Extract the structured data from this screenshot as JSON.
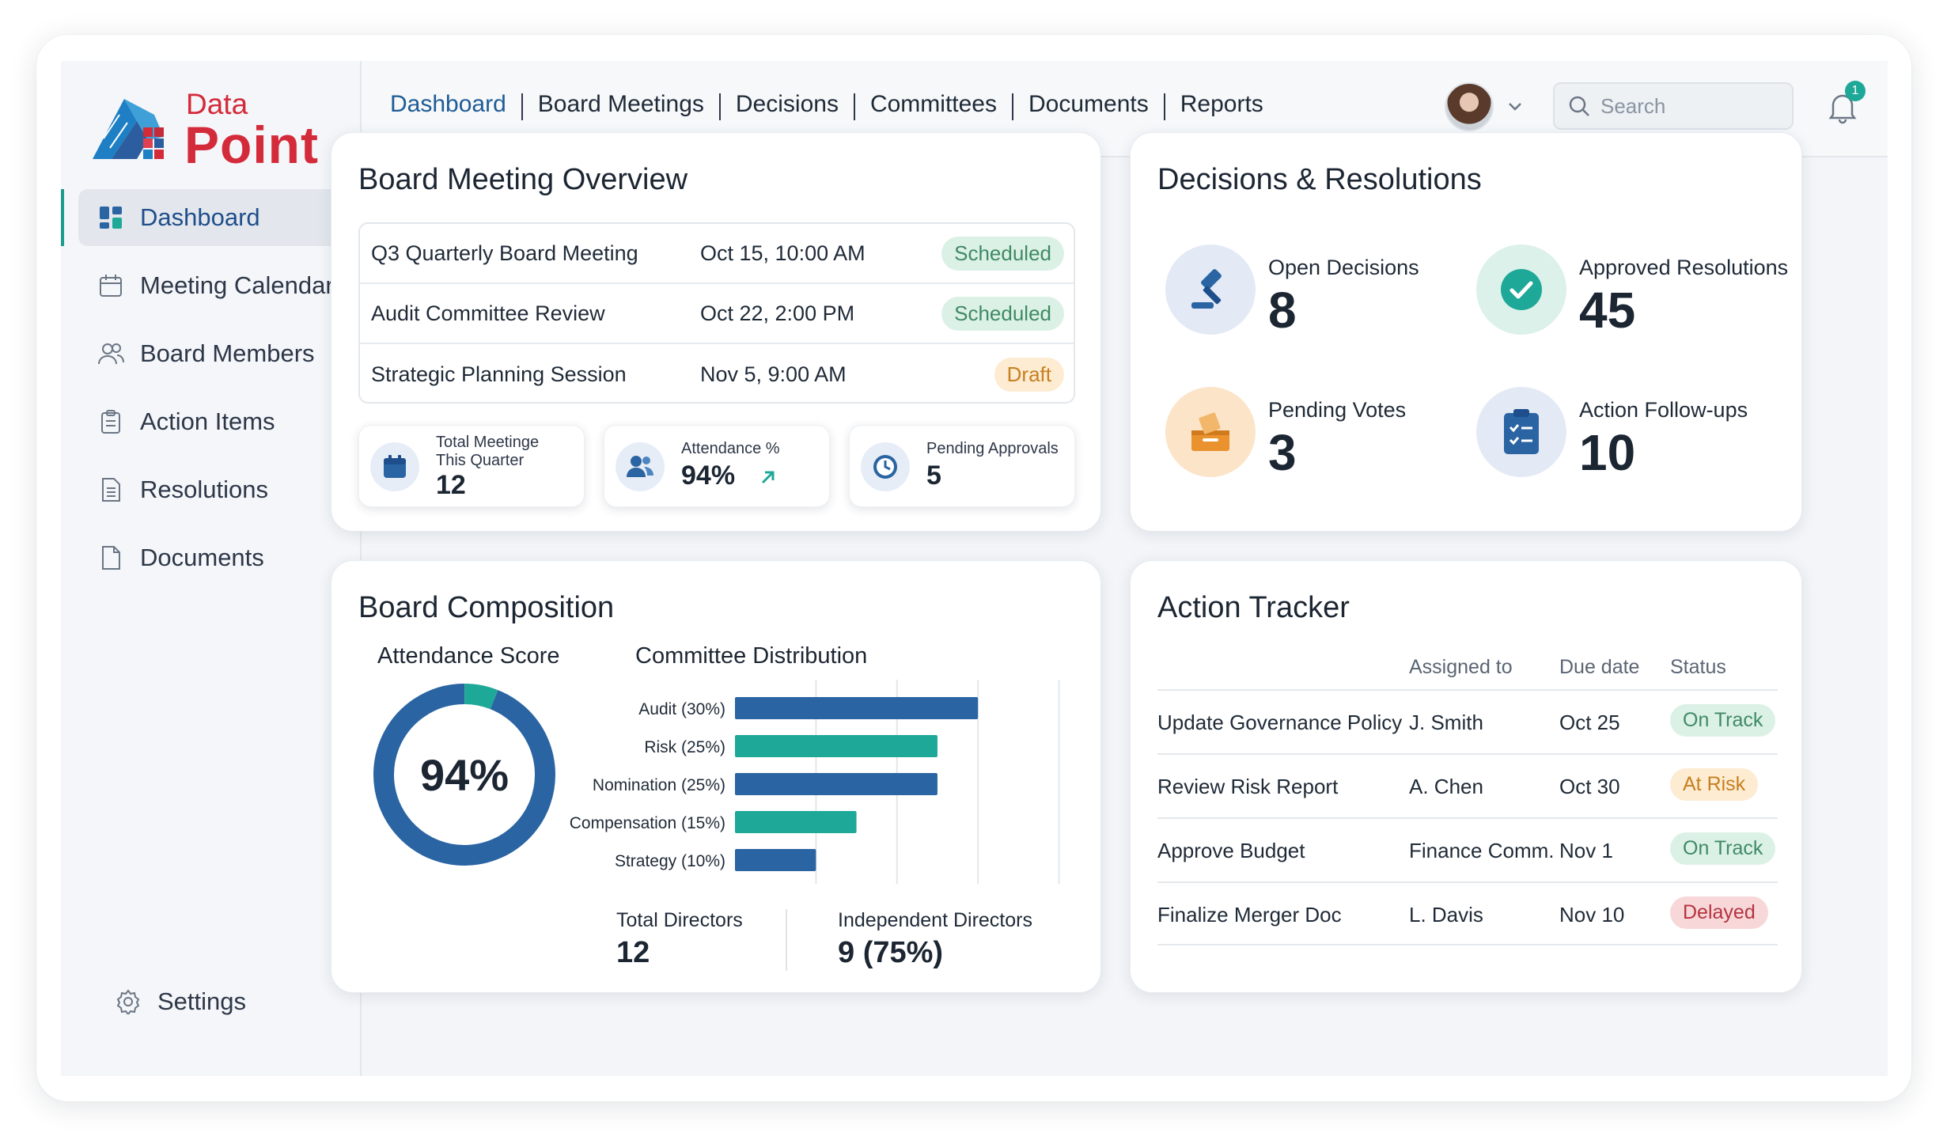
{
  "brand": {
    "line1": "Data",
    "line2": "Point"
  },
  "sidebar": {
    "items": [
      {
        "label": "Dashboard",
        "icon": "dashboard-grid-icon",
        "active": true
      },
      {
        "label": "Meeting Calendar",
        "icon": "calendar-icon"
      },
      {
        "label": "Board Members",
        "icon": "people-icon"
      },
      {
        "label": "Action Items",
        "icon": "clipboard-icon"
      },
      {
        "label": "Resolutions",
        "icon": "document-lines-icon"
      },
      {
        "label": "Documents",
        "icon": "document-icon"
      }
    ],
    "settings_label": "Settings"
  },
  "topnav": {
    "tabs": [
      "Dashboard",
      "Board Meetings",
      "Decisions",
      "Committees",
      "Documents",
      "Reports"
    ],
    "active_tab": "Dashboard",
    "search_placeholder": "Search",
    "notification_count": "1"
  },
  "meeting_overview": {
    "title": "Board Meeting Overview",
    "meetings": [
      {
        "name": "Q3 Quarterly Board Meeting",
        "date": "Oct 15, 10:00 AM",
        "status": "Scheduled"
      },
      {
        "name": "Audit Committee Review",
        "date": "Oct 22, 2:00 PM",
        "status": "Scheduled"
      },
      {
        "name": "Strategic Planning Session",
        "date": "Nov 5, 9:00 AM",
        "status": "Draft"
      }
    ],
    "kpis": {
      "total_meetings": {
        "label_line1": "Total Meetinge",
        "label_line2": "This Quarter",
        "value": "12"
      },
      "attendance": {
        "label": "Attendance %",
        "value": "94%"
      },
      "pending_approvals": {
        "label": "Pending Approvals",
        "value": "5"
      }
    }
  },
  "decisions": {
    "title": "Decisions & Resolutions",
    "open_decisions": {
      "label": "Open Decisions",
      "value": "8"
    },
    "approved_resolutions": {
      "label": "Approved Resolutions",
      "value": "45"
    },
    "pending_votes": {
      "label": "Pending Votes",
      "value": "3"
    },
    "action_followups": {
      "label": "Action Follow-ups",
      "value": "10"
    }
  },
  "composition": {
    "title": "Board Composition",
    "attendance_title": "Attendance Score",
    "attendance_value": "94%",
    "distribution_title": "Committee Distribution",
    "total_directors_label": "Total Directors",
    "total_directors_value": "12",
    "independent_label": "Independent Directors",
    "independent_value": "9 (75%)"
  },
  "chart_data": [
    {
      "type": "pie",
      "title": "Attendance Score",
      "values": [
        94,
        6
      ],
      "center_label": "94%"
    },
    {
      "type": "bar",
      "title": "Committee Distribution",
      "orientation": "horizontal",
      "categories": [
        "Audit (30%)",
        "Risk (25%)",
        "Nomination (25%)",
        "Compensation (15%)",
        "Strategy (10%)"
      ],
      "values": [
        30,
        25,
        25,
        15,
        10
      ],
      "xlim": [
        0,
        42
      ]
    }
  ],
  "action_tracker": {
    "title": "Action Tracker",
    "columns": [
      "Assigned to",
      "Due date",
      "Status"
    ],
    "rows": [
      {
        "task": "Update Governance Policy",
        "assigned": "J. Smith",
        "due": "Oct 25",
        "status": "On Track"
      },
      {
        "task": "Review Risk Report",
        "assigned": "A. Chen",
        "due": "Oct 30",
        "status": "At Risk"
      },
      {
        "task": "Approve Budget",
        "assigned": "Finance Comm.",
        "due": "Nov 1",
        "status": "On Track"
      },
      {
        "task": "Finalize Merger Doc",
        "assigned": "L. Davis",
        "due": "Nov 10",
        "status": "Delayed"
      }
    ]
  },
  "colors": {
    "primary": "#2a64a3",
    "teal": "#1ea898",
    "brand_red": "#d42b3b",
    "scheduled": "#3f8a64",
    "draft": "#c7801f",
    "delayed": "#b5333f"
  }
}
